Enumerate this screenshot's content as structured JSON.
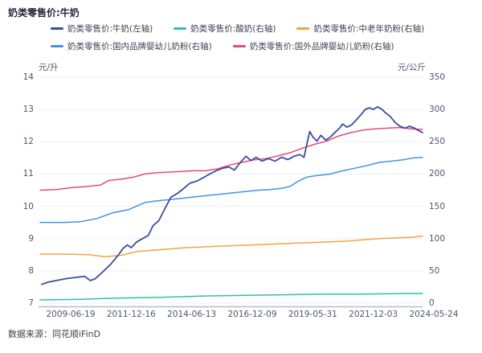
{
  "title": "奶类零售价:牛奶",
  "source": "数据来源：同花顺iFinD",
  "colors": {
    "milk_navy": "#3e4e9e",
    "yogurt_teal": "#2bc1ae",
    "elderly_powder_orange": "#f7a23f",
    "domestic_infant_blue": "#4593e2",
    "foreign_infant_pink": "#e8487f",
    "grid": "#edeff5",
    "axis_line": "#b6bcc9",
    "tick_text": "#4e566b"
  },
  "legend": [
    {
      "label": "奶类零售价:牛奶(左轴)",
      "color": "#3e4e9e"
    },
    {
      "label": "奶类零售价:酸奶(右轴)",
      "color": "#2bc1ae"
    },
    {
      "label": "奶类零售价:中老年奶粉(右轴)",
      "color": "#f7a23f"
    },
    {
      "label": "奶类零售价:国内品牌婴幼儿奶粉(右轴)",
      "color": "#4593e2"
    },
    {
      "label": "奶类零售价:国外品牌婴幼儿奶粉(右轴)",
      "color": "#e8487f"
    }
  ],
  "chart_data": {
    "type": "line",
    "title": "奶类零售价:牛奶",
    "grid": "horizontal",
    "legend_position": "top",
    "left_axis": {
      "unit": "元/升",
      "ylim": [
        7,
        14
      ],
      "ticks": [
        14,
        13,
        12,
        11,
        10,
        9,
        8,
        7
      ]
    },
    "right_axis": {
      "unit": "元/公斤",
      "ylim": [
        0,
        350
      ],
      "ticks": [
        350,
        300,
        250,
        200,
        150,
        100,
        50,
        0
      ]
    },
    "x_ticks": [
      "2009-06-19",
      "2011-12-16",
      "2014-06-13",
      "2016-12-09",
      "2019-05-31",
      "2021-12-03",
      "2024-05-24"
    ],
    "x_note": "x values below are fractions of the span 2009-06-19 → 2024-05-24",
    "series": [
      {
        "name": "奶类零售价:酸奶(右轴)",
        "axis": "right",
        "color": "#2bc1ae",
        "points": [
          [
            0.0,
            5
          ],
          [
            0.105,
            6
          ],
          [
            0.211,
            8
          ],
          [
            0.316,
            9
          ],
          [
            0.422,
            11
          ],
          [
            0.527,
            12
          ],
          [
            0.633,
            13
          ],
          [
            0.738,
            14
          ],
          [
            0.844,
            14
          ],
          [
            0.949,
            15
          ],
          [
            1.0,
            15
          ]
        ]
      },
      {
        "name": "奶类零售价:中老年奶粉(右轴)",
        "axis": "right",
        "color": "#f7a23f",
        "points": [
          [
            0.0,
            76
          ],
          [
            0.063,
            76
          ],
          [
            0.127,
            75
          ],
          [
            0.169,
            72
          ],
          [
            0.211,
            74
          ],
          [
            0.253,
            80
          ],
          [
            0.295,
            82
          ],
          [
            0.338,
            84
          ],
          [
            0.38,
            86
          ],
          [
            0.422,
            87
          ],
          [
            0.464,
            88
          ],
          [
            0.506,
            89
          ],
          [
            0.549,
            90
          ],
          [
            0.591,
            91
          ],
          [
            0.633,
            92
          ],
          [
            0.675,
            93
          ],
          [
            0.717,
            94
          ],
          [
            0.759,
            95
          ],
          [
            0.802,
            96
          ],
          [
            0.844,
            98
          ],
          [
            0.886,
            100
          ],
          [
            0.928,
            101
          ],
          [
            0.97,
            102
          ],
          [
            1.0,
            104
          ]
        ]
      },
      {
        "name": "奶类零售价:国内品牌婴幼儿奶粉(右轴)",
        "axis": "right",
        "color": "#4593e2",
        "points": [
          [
            0.0,
            125
          ],
          [
            0.063,
            125
          ],
          [
            0.105,
            126
          ],
          [
            0.148,
            131
          ],
          [
            0.19,
            140
          ],
          [
            0.232,
            145
          ],
          [
            0.274,
            156
          ],
          [
            0.316,
            159
          ],
          [
            0.348,
            161
          ],
          [
            0.38,
            163
          ],
          [
            0.411,
            165
          ],
          [
            0.443,
            167
          ],
          [
            0.475,
            169
          ],
          [
            0.506,
            171
          ],
          [
            0.538,
            173
          ],
          [
            0.57,
            175
          ],
          [
            0.601,
            176
          ],
          [
            0.633,
            178
          ],
          [
            0.654,
            181
          ],
          [
            0.675,
            189
          ],
          [
            0.696,
            195
          ],
          [
            0.717,
            197
          ],
          [
            0.759,
            200
          ],
          [
            0.791,
            205
          ],
          [
            0.823,
            209
          ],
          [
            0.854,
            213
          ],
          [
            0.886,
            218
          ],
          [
            0.918,
            220
          ],
          [
            0.949,
            222
          ],
          [
            0.975,
            225
          ],
          [
            1.0,
            226
          ]
        ]
      },
      {
        "name": "奶类零售价:国外品牌婴幼儿奶粉(右轴)",
        "axis": "right",
        "color": "#e8487f",
        "points": [
          [
            0.0,
            175
          ],
          [
            0.042,
            176
          ],
          [
            0.084,
            179
          ],
          [
            0.127,
            181
          ],
          [
            0.158,
            183
          ],
          [
            0.179,
            190
          ],
          [
            0.211,
            192
          ],
          [
            0.243,
            195
          ],
          [
            0.274,
            200
          ],
          [
            0.306,
            202
          ],
          [
            0.338,
            203
          ],
          [
            0.369,
            204
          ],
          [
            0.401,
            205
          ],
          [
            0.432,
            205
          ],
          [
            0.464,
            208
          ],
          [
            0.496,
            214
          ],
          [
            0.527,
            218
          ],
          [
            0.559,
            222
          ],
          [
            0.591,
            224
          ],
          [
            0.622,
            228
          ],
          [
            0.654,
            233
          ],
          [
            0.686,
            240
          ],
          [
            0.717,
            246
          ],
          [
            0.749,
            251
          ],
          [
            0.781,
            259
          ],
          [
            0.812,
            264
          ],
          [
            0.844,
            268
          ],
          [
            0.876,
            270
          ],
          [
            0.907,
            271
          ],
          [
            0.939,
            272
          ],
          [
            0.97,
            270
          ],
          [
            1.0,
            269
          ]
        ]
      },
      {
        "name": "奶类零售价:牛奶(左轴)",
        "axis": "left",
        "color": "#3e4e9e",
        "points": [
          [
            0.004,
            7.58
          ],
          [
            0.021,
            7.65
          ],
          [
            0.042,
            7.7
          ],
          [
            0.068,
            7.76
          ],
          [
            0.095,
            7.8
          ],
          [
            0.116,
            7.83
          ],
          [
            0.131,
            7.7
          ],
          [
            0.143,
            7.75
          ],
          [
            0.162,
            7.95
          ],
          [
            0.184,
            8.2
          ],
          [
            0.205,
            8.5
          ],
          [
            0.217,
            8.7
          ],
          [
            0.228,
            8.8
          ],
          [
            0.238,
            8.72
          ],
          [
            0.253,
            8.9
          ],
          [
            0.268,
            9.0
          ],
          [
            0.283,
            9.1
          ],
          [
            0.295,
            9.4
          ],
          [
            0.31,
            9.55
          ],
          [
            0.327,
            9.95
          ],
          [
            0.342,
            10.28
          ],
          [
            0.359,
            10.4
          ],
          [
            0.375,
            10.55
          ],
          [
            0.392,
            10.72
          ],
          [
            0.409,
            10.78
          ],
          [
            0.426,
            10.88
          ],
          [
            0.443,
            11.0
          ],
          [
            0.46,
            11.1
          ],
          [
            0.477,
            11.18
          ],
          [
            0.494,
            11.22
          ],
          [
            0.508,
            11.12
          ],
          [
            0.523,
            11.35
          ],
          [
            0.538,
            11.55
          ],
          [
            0.551,
            11.42
          ],
          [
            0.565,
            11.52
          ],
          [
            0.58,
            11.4
          ],
          [
            0.597,
            11.48
          ],
          [
            0.614,
            11.4
          ],
          [
            0.631,
            11.52
          ],
          [
            0.648,
            11.45
          ],
          [
            0.664,
            11.55
          ],
          [
            0.679,
            11.6
          ],
          [
            0.69,
            11.52
          ],
          [
            0.698,
            11.95
          ],
          [
            0.705,
            12.32
          ],
          [
            0.713,
            12.15
          ],
          [
            0.724,
            12.02
          ],
          [
            0.734,
            12.2
          ],
          [
            0.747,
            12.05
          ],
          [
            0.759,
            12.15
          ],
          [
            0.772,
            12.3
          ],
          [
            0.783,
            12.42
          ],
          [
            0.791,
            12.55
          ],
          [
            0.802,
            12.45
          ],
          [
            0.814,
            12.52
          ],
          [
            0.827,
            12.68
          ],
          [
            0.84,
            12.85
          ],
          [
            0.85,
            13.0
          ],
          [
            0.861,
            13.05
          ],
          [
            0.871,
            13.0
          ],
          [
            0.882,
            13.08
          ],
          [
            0.892,
            13.02
          ],
          [
            0.903,
            12.9
          ],
          [
            0.916,
            12.78
          ],
          [
            0.928,
            12.6
          ],
          [
            0.941,
            12.48
          ],
          [
            0.954,
            12.42
          ],
          [
            0.966,
            12.48
          ],
          [
            0.979,
            12.42
          ],
          [
            0.989,
            12.35
          ],
          [
            1.0,
            12.28
          ]
        ]
      }
    ]
  }
}
